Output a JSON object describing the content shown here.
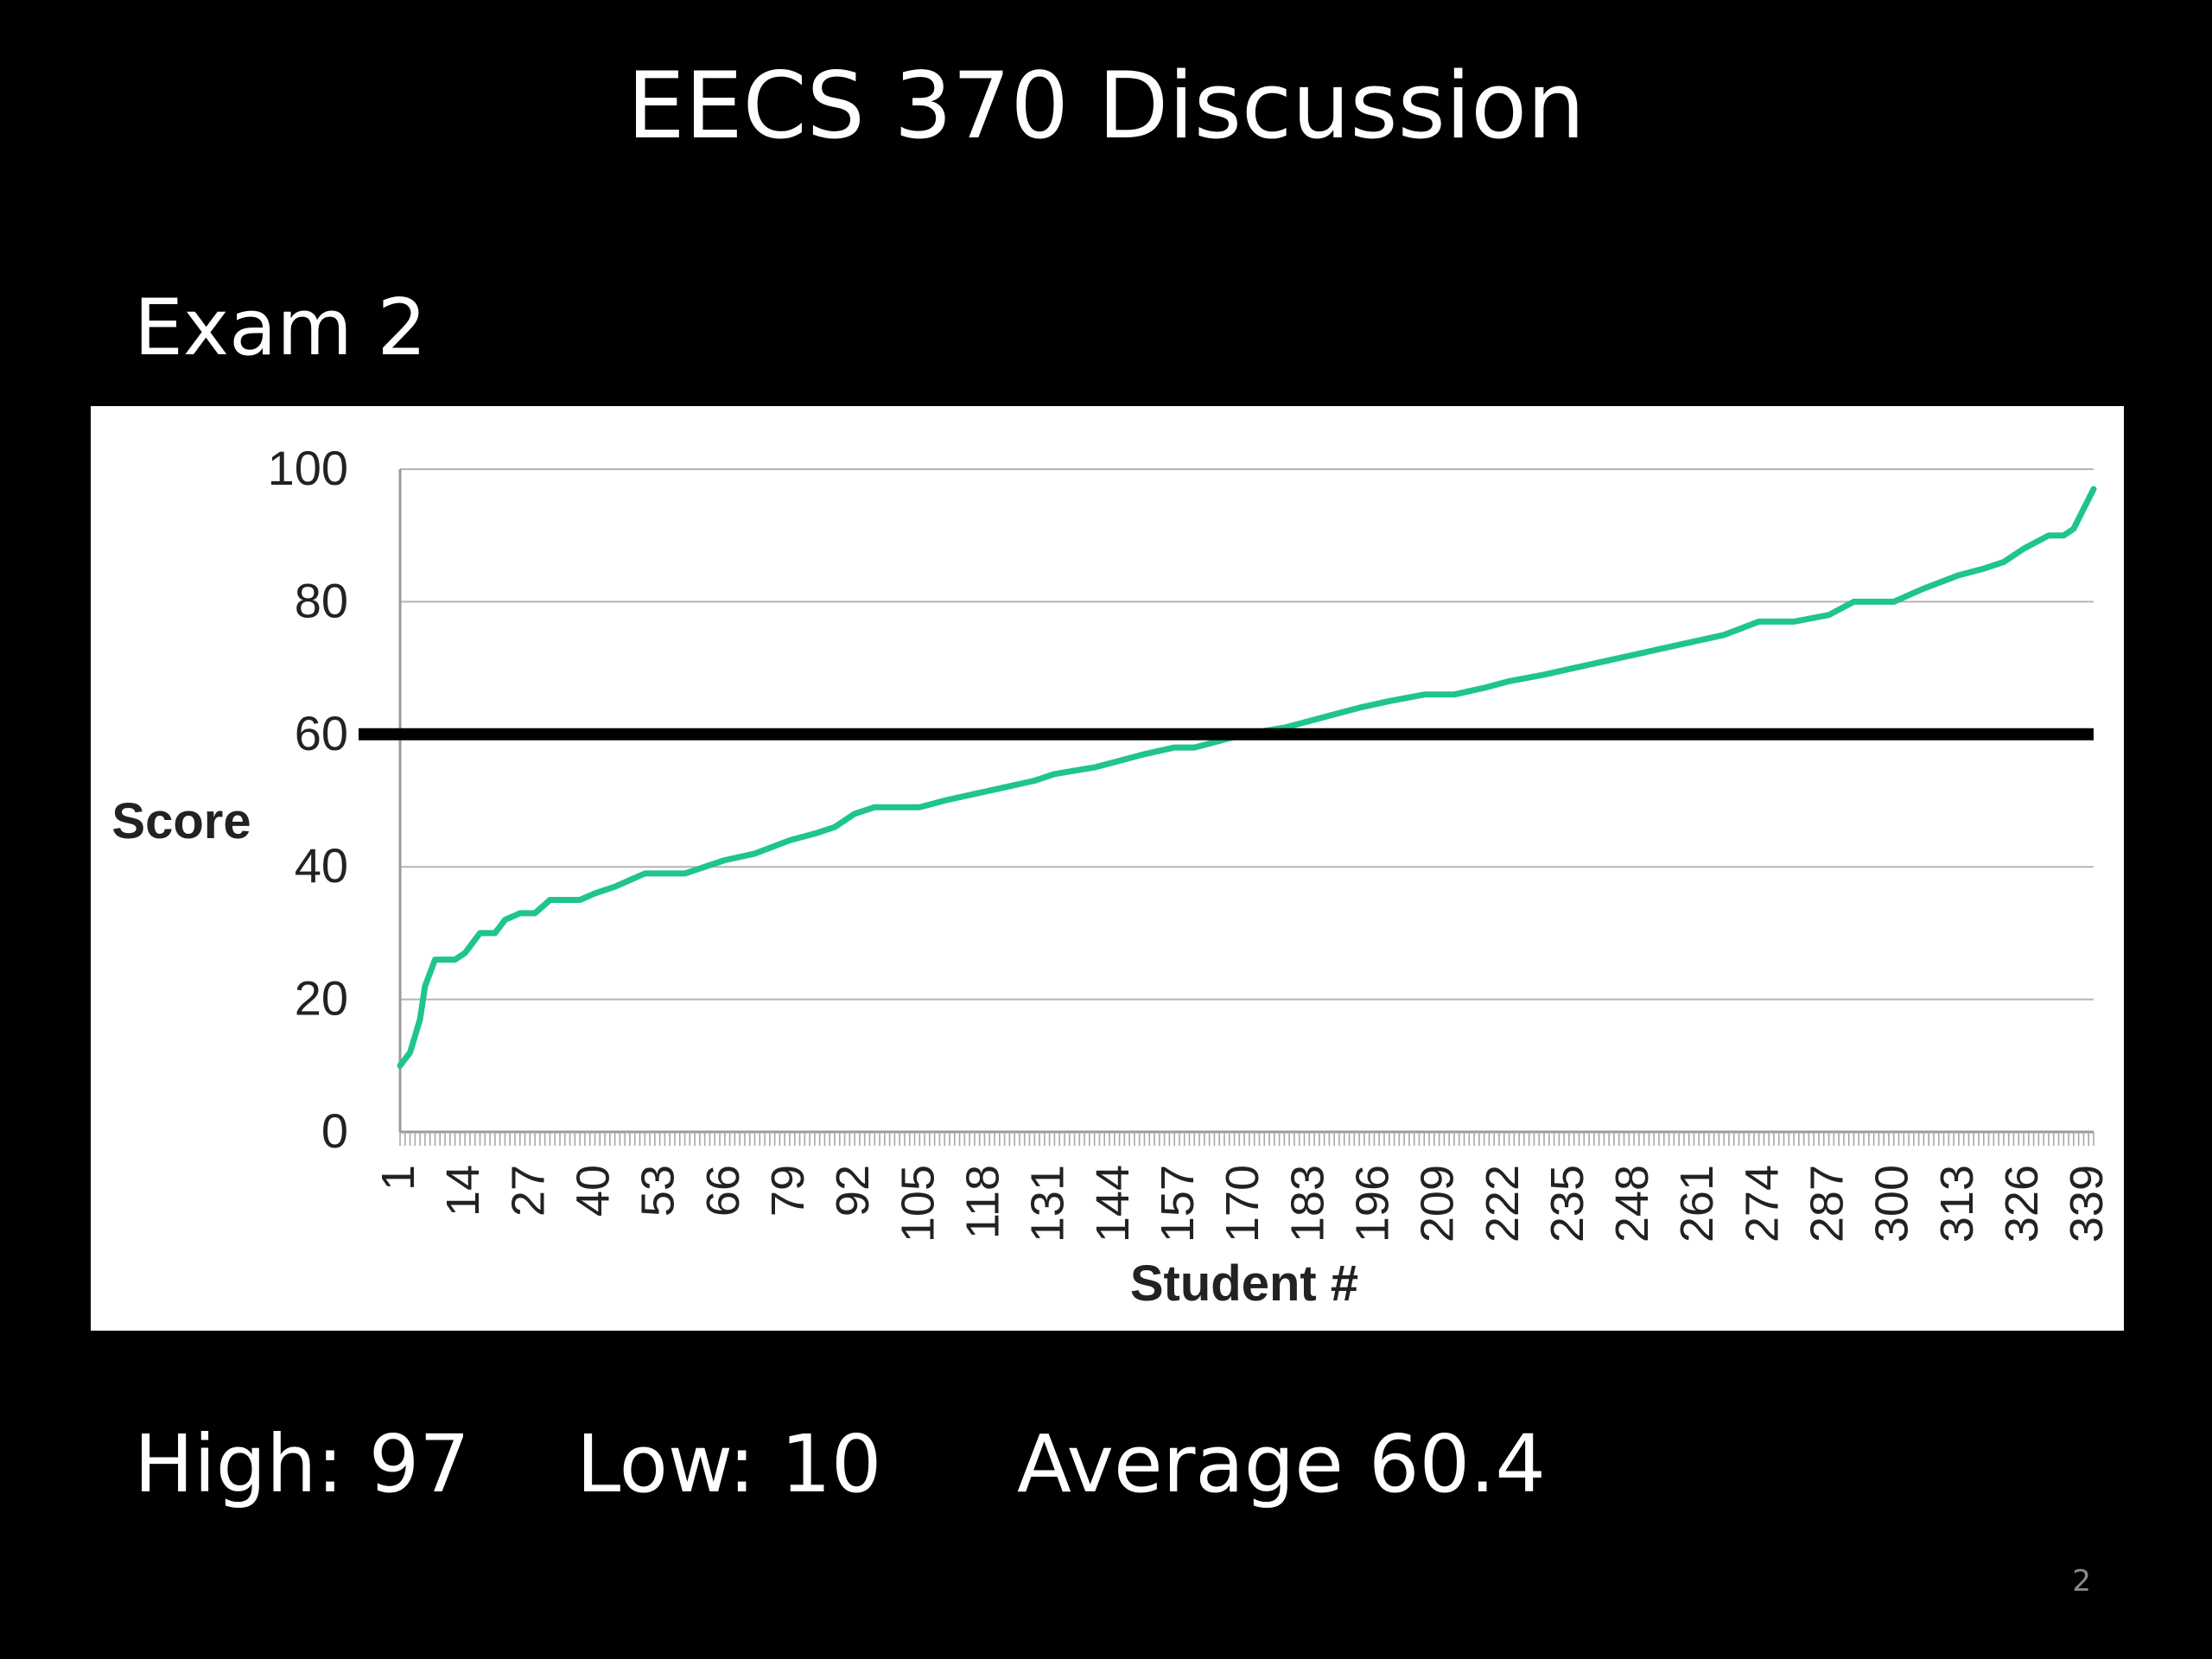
{
  "slide": {
    "title": "EECS 370 Discussion",
    "subtitle": "Exam 2",
    "page_number": "2"
  },
  "stats": {
    "high": "High: 97",
    "low": "Low: 10",
    "average": "Average 60.4"
  },
  "colors": {
    "background": "#000000",
    "text": "#ffffff",
    "series_line": "#1fc48f",
    "threshold_line": "#000000",
    "gridline": "#b5b5b5"
  },
  "chart_data": {
    "type": "line",
    "title": "",
    "xlabel": "Student #",
    "ylabel": "Score",
    "xlim": [
      1,
      340
    ],
    "ylim": [
      0,
      100
    ],
    "yticks": [
      0,
      20,
      40,
      60,
      80,
      100
    ],
    "xticks": [
      1,
      14,
      27,
      40,
      53,
      66,
      79,
      92,
      105,
      118,
      131,
      144,
      157,
      170,
      183,
      196,
      209,
      222,
      235,
      248,
      261,
      274,
      287,
      300,
      313,
      326,
      339
    ],
    "grid": "horizontal",
    "threshold_line": 60,
    "series": [
      {
        "points": [
          [
            1,
            10
          ],
          [
            3,
            12
          ],
          [
            5,
            17
          ],
          [
            6,
            22
          ],
          [
            8,
            26
          ],
          [
            12,
            26
          ],
          [
            14,
            27
          ],
          [
            17,
            30
          ],
          [
            20,
            30
          ],
          [
            22,
            32
          ],
          [
            25,
            33
          ],
          [
            28,
            33
          ],
          [
            31,
            35
          ],
          [
            37,
            35
          ],
          [
            40,
            36
          ],
          [
            44,
            37
          ],
          [
            47,
            38
          ],
          [
            50,
            39
          ],
          [
            58,
            39
          ],
          [
            62,
            40
          ],
          [
            66,
            41
          ],
          [
            72,
            42
          ],
          [
            79,
            44
          ],
          [
            84,
            45
          ],
          [
            88,
            46
          ],
          [
            92,
            48
          ],
          [
            96,
            49
          ],
          [
            105,
            49
          ],
          [
            110,
            50
          ],
          [
            116,
            51
          ],
          [
            122,
            52
          ],
          [
            128,
            53
          ],
          [
            132,
            54
          ],
          [
            140,
            55
          ],
          [
            145,
            56
          ],
          [
            150,
            57
          ],
          [
            156,
            58
          ],
          [
            160,
            58
          ],
          [
            165,
            59
          ],
          [
            170,
            60
          ],
          [
            178,
            61
          ],
          [
            183,
            62
          ],
          [
            188,
            63
          ],
          [
            193,
            64
          ],
          [
            199,
            65
          ],
          [
            206,
            66
          ],
          [
            212,
            66
          ],
          [
            218,
            67
          ],
          [
            223,
            68
          ],
          [
            230,
            69
          ],
          [
            236,
            70
          ],
          [
            242,
            71
          ],
          [
            248,
            72
          ],
          [
            254,
            73
          ],
          [
            260,
            74
          ],
          [
            266,
            75
          ],
          [
            273,
            77
          ],
          [
            280,
            77
          ],
          [
            287,
            78
          ],
          [
            292,
            80
          ],
          [
            300,
            80
          ],
          [
            306,
            82
          ],
          [
            313,
            84
          ],
          [
            318,
            85
          ],
          [
            322,
            86
          ],
          [
            326,
            88
          ],
          [
            331,
            90
          ],
          [
            334,
            90
          ],
          [
            336,
            91
          ],
          [
            338,
            94
          ],
          [
            340,
            97
          ]
        ]
      }
    ]
  }
}
